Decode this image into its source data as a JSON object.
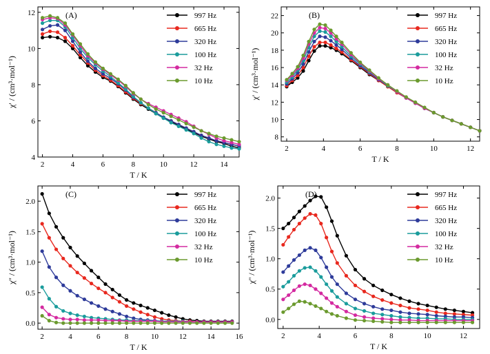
{
  "chart_data": [
    {
      "type": "line",
      "panel_label": "(A)",
      "xlabel": "T / K",
      "ylabel": "χ' / (cm³·mol⁻¹)",
      "xlim": [
        1.7,
        15
      ],
      "ylim": [
        4,
        12.3
      ],
      "xticks": [
        2,
        4,
        6,
        8,
        10,
        12,
        14
      ],
      "yticks": [
        4,
        6,
        8,
        10,
        12
      ],
      "legend": "top-right",
      "x": [
        2.0,
        2.5,
        3.0,
        3.5,
        4.0,
        4.5,
        5.0,
        5.5,
        6.0,
        6.5,
        7.0,
        7.5,
        8.0,
        8.5,
        9.0,
        9.5,
        10.0,
        10.5,
        11.0,
        11.5,
        12.0,
        12.5,
        13.0,
        13.5,
        14.0,
        14.5,
        15.0
      ],
      "series": [
        {
          "name": "997 Hz",
          "color": "#000000",
          "values": [
            10.6,
            10.65,
            10.6,
            10.4,
            10.0,
            9.5,
            9.05,
            8.7,
            8.4,
            8.2,
            7.9,
            7.55,
            7.2,
            6.9,
            6.65,
            6.4,
            6.15,
            5.95,
            5.75,
            5.55,
            5.35,
            5.15,
            5.0,
            4.85,
            4.75,
            4.6,
            4.5
          ]
        },
        {
          "name": "665 Hz",
          "color": "#e8281e",
          "values": [
            10.8,
            10.95,
            10.9,
            10.6,
            10.15,
            9.65,
            9.2,
            8.8,
            8.5,
            8.25,
            7.95,
            7.6,
            7.25,
            6.95,
            6.7,
            6.45,
            6.2,
            6.0,
            5.8,
            5.6,
            5.4,
            5.2,
            5.05,
            4.9,
            4.8,
            4.7,
            4.6
          ]
        },
        {
          "name": "320 Hz",
          "color": "#2e3b9a",
          "values": [
            11.05,
            11.25,
            11.3,
            11.0,
            10.4,
            9.8,
            9.3,
            8.9,
            8.6,
            8.35,
            8.05,
            7.7,
            7.3,
            7.0,
            6.7,
            6.45,
            6.2,
            6.0,
            5.8,
            5.6,
            5.4,
            5.2,
            5.05,
            4.9,
            4.8,
            4.7,
            4.6
          ]
        },
        {
          "name": "100 Hz",
          "color": "#1a9c9c",
          "values": [
            11.4,
            11.55,
            11.55,
            11.2,
            10.6,
            10.0,
            9.5,
            9.1,
            8.75,
            8.45,
            8.1,
            7.75,
            7.35,
            7.0,
            6.7,
            6.4,
            6.15,
            5.9,
            5.7,
            5.5,
            5.3,
            5.05,
            4.85,
            4.7,
            4.6,
            4.5,
            4.45
          ]
        },
        {
          "name": "32 Hz",
          "color": "#d42aa0",
          "values": [
            11.6,
            11.7,
            11.65,
            11.3,
            10.75,
            10.15,
            9.6,
            9.2,
            8.85,
            8.55,
            8.25,
            7.9,
            7.5,
            7.2,
            6.95,
            6.75,
            6.55,
            6.35,
            6.15,
            5.95,
            5.7,
            5.45,
            5.25,
            5.05,
            4.9,
            4.8,
            4.7
          ]
        },
        {
          "name": "10 Hz",
          "color": "#6b9a2e",
          "values": [
            11.7,
            11.8,
            11.7,
            11.4,
            10.8,
            10.25,
            9.7,
            9.25,
            8.9,
            8.6,
            8.3,
            7.95,
            7.55,
            7.2,
            6.9,
            6.65,
            6.45,
            6.25,
            6.05,
            5.85,
            5.65,
            5.45,
            5.3,
            5.15,
            5.05,
            4.95,
            4.85
          ]
        }
      ]
    },
    {
      "type": "line",
      "panel_label": "(B)",
      "xlabel": "T / K",
      "ylabel": "χ' / (cm³·mol⁻¹)",
      "xlim": [
        1.7,
        12.5
      ],
      "ylim": [
        7.5,
        23
      ],
      "xticks": [
        2,
        4,
        6,
        8,
        10,
        12
      ],
      "yticks": [
        8,
        10,
        12,
        14,
        16,
        18,
        20,
        22
      ],
      "legend": "top-right",
      "x": [
        2.0,
        2.3,
        2.6,
        2.9,
        3.2,
        3.5,
        3.8,
        4.1,
        4.4,
        4.7,
        5.0,
        5.5,
        6.0,
        6.5,
        7.0,
        7.5,
        8.0,
        8.5,
        9.0,
        9.5,
        10.0,
        10.5,
        11.0,
        11.5,
        12.0,
        12.5
      ],
      "series": [
        {
          "name": "997 Hz",
          "color": "#000000",
          "values": [
            13.8,
            14.3,
            14.8,
            15.6,
            16.8,
            17.9,
            18.5,
            18.5,
            18.3,
            18.0,
            17.6,
            16.8,
            16.0,
            15.2,
            14.5,
            13.8,
            13.1,
            12.5,
            11.9,
            11.3,
            10.8,
            10.3,
            9.9,
            9.5,
            9.1,
            8.7
          ]
        },
        {
          "name": "665 Hz",
          "color": "#e8281e",
          "values": [
            13.9,
            14.5,
            15.1,
            16.0,
            17.3,
            18.4,
            18.9,
            18.9,
            18.6,
            18.2,
            17.8,
            16.9,
            16.1,
            15.3,
            14.5,
            13.8,
            13.1,
            12.5,
            11.9,
            11.3,
            10.8,
            10.3,
            9.9,
            9.5,
            9.1,
            8.7
          ]
        },
        {
          "name": "320 Hz",
          "color": "#2e3b9a",
          "values": [
            14.1,
            14.7,
            15.4,
            16.4,
            17.8,
            19.0,
            19.6,
            19.5,
            19.1,
            18.6,
            18.1,
            17.1,
            16.2,
            15.4,
            14.6,
            13.9,
            13.2,
            12.5,
            11.9,
            11.3,
            10.8,
            10.3,
            9.9,
            9.5,
            9.1,
            8.7
          ]
        },
        {
          "name": "100 Hz",
          "color": "#1a9c9c",
          "values": [
            14.3,
            14.9,
            15.7,
            16.8,
            18.3,
            19.6,
            20.2,
            20.1,
            19.6,
            19.0,
            18.4,
            17.3,
            16.4,
            15.5,
            14.7,
            13.9,
            13.2,
            12.5,
            11.9,
            11.3,
            10.8,
            10.3,
            9.9,
            9.5,
            9.1,
            8.7
          ]
        },
        {
          "name": "32 Hz",
          "color": "#d42aa0",
          "values": [
            14.5,
            15.1,
            15.9,
            17.1,
            18.7,
            20.0,
            20.6,
            20.5,
            20.0,
            19.3,
            18.7,
            17.5,
            16.5,
            15.6,
            14.7,
            14.0,
            13.2,
            12.5,
            11.9,
            11.3,
            10.8,
            10.3,
            9.9,
            9.5,
            9.1,
            8.7
          ]
        },
        {
          "name": "10 Hz",
          "color": "#6b9a2e",
          "values": [
            14.6,
            15.3,
            16.1,
            17.4,
            19.0,
            20.4,
            21.0,
            20.9,
            20.3,
            19.6,
            18.9,
            17.7,
            16.6,
            15.7,
            14.8,
            14.0,
            13.3,
            12.6,
            12.0,
            11.4,
            10.8,
            10.3,
            9.9,
            9.5,
            9.1,
            8.7
          ]
        }
      ]
    },
    {
      "type": "line",
      "panel_label": "(C)",
      "xlabel": "T / K",
      "ylabel": "χ'' / (cm³·mol⁻¹)",
      "xlim": [
        1.7,
        16
      ],
      "ylim": [
        -0.1,
        2.25
      ],
      "xticks": [
        2,
        4,
        6,
        8,
        10,
        12,
        14,
        16
      ],
      "yticks": [
        0.0,
        0.5,
        1.0,
        1.5,
        2.0
      ],
      "legend": "top-right",
      "x": [
        2.0,
        2.5,
        3.0,
        3.5,
        4.0,
        4.5,
        5.0,
        5.5,
        6.0,
        6.5,
        7.0,
        7.5,
        8.0,
        8.5,
        9.0,
        9.5,
        10.0,
        10.5,
        11.0,
        11.5,
        12.0,
        12.5,
        13.0,
        13.5,
        14.0,
        14.5,
        15.0,
        15.5
      ],
      "series": [
        {
          "name": "997 Hz",
          "color": "#000000",
          "values": [
            2.12,
            1.8,
            1.58,
            1.4,
            1.24,
            1.1,
            0.98,
            0.86,
            0.75,
            0.64,
            0.55,
            0.46,
            0.38,
            0.33,
            0.29,
            0.25,
            0.21,
            0.17,
            0.13,
            0.1,
            0.07,
            0.05,
            0.04,
            0.03,
            0.03,
            0.03,
            0.03,
            0.03
          ]
        },
        {
          "name": "665 Hz",
          "color": "#e8281e",
          "values": [
            1.63,
            1.4,
            1.21,
            1.06,
            0.94,
            0.83,
            0.74,
            0.65,
            0.57,
            0.5,
            0.42,
            0.35,
            0.28,
            0.23,
            0.18,
            0.14,
            0.1,
            0.07,
            0.05,
            0.04,
            0.03,
            0.03,
            0.02,
            0.02,
            0.02,
            0.02,
            0.02,
            0.02
          ]
        },
        {
          "name": "320 Hz",
          "color": "#2e3b9a",
          "values": [
            1.18,
            0.92,
            0.75,
            0.62,
            0.53,
            0.45,
            0.39,
            0.33,
            0.28,
            0.23,
            0.19,
            0.15,
            0.11,
            0.08,
            0.06,
            0.05,
            0.04,
            0.03,
            0.03,
            0.02,
            0.02,
            0.02,
            0.02,
            0.02,
            0.02,
            0.02,
            0.02,
            0.02
          ]
        },
        {
          "name": "100 Hz",
          "color": "#1a9c9c",
          "values": [
            0.59,
            0.4,
            0.27,
            0.2,
            0.16,
            0.13,
            0.11,
            0.09,
            0.08,
            0.07,
            0.06,
            0.05,
            0.05,
            0.04,
            0.04,
            0.04,
            0.03,
            0.03,
            0.03,
            0.03,
            0.03,
            0.02,
            0.02,
            0.02,
            0.02,
            0.02,
            0.02,
            0.02
          ]
        },
        {
          "name": "32 Hz",
          "color": "#d42aa0",
          "values": [
            0.26,
            0.14,
            0.09,
            0.07,
            0.06,
            0.06,
            0.05,
            0.05,
            0.05,
            0.04,
            0.04,
            0.04,
            0.03,
            0.03,
            0.03,
            0.03,
            0.03,
            0.02,
            0.02,
            0.02,
            0.02,
            0.02,
            0.02,
            0.02,
            0.02,
            0.02,
            0.02,
            0.02
          ]
        },
        {
          "name": "10 Hz",
          "color": "#6b9a2e",
          "values": [
            0.12,
            0.04,
            0.01,
            0.0,
            0.0,
            0.0,
            0.0,
            0.0,
            0.0,
            0.0,
            0.0,
            0.0,
            0.0,
            0.0,
            0.0,
            0.0,
            0.0,
            0.0,
            0.0,
            0.0,
            0.0,
            0.0,
            0.0,
            0.0,
            0.0,
            0.0,
            0.0,
            0.0
          ]
        }
      ]
    },
    {
      "type": "line",
      "panel_label": "(D)",
      "xlabel": "T / K",
      "ylabel": "χ'' / (cm³·mol⁻¹)",
      "xlim": [
        1.7,
        12.9
      ],
      "ylim": [
        -0.15,
        2.2
      ],
      "xticks": [
        2,
        4,
        6,
        8,
        10,
        12
      ],
      "yticks": [
        0.0,
        0.5,
        1.0,
        1.5,
        2.0
      ],
      "legend": "top-right",
      "x": [
        2.0,
        2.3,
        2.6,
        2.9,
        3.2,
        3.5,
        3.8,
        4.1,
        4.4,
        4.7,
        5.0,
        5.5,
        6.0,
        6.5,
        7.0,
        7.5,
        8.0,
        8.5,
        9.0,
        9.5,
        10.0,
        10.5,
        11.0,
        11.5,
        12.0,
        12.5
      ],
      "series": [
        {
          "name": "997 Hz",
          "color": "#000000",
          "values": [
            1.5,
            1.58,
            1.68,
            1.78,
            1.87,
            1.96,
            2.03,
            2.02,
            1.85,
            1.62,
            1.38,
            1.05,
            0.82,
            0.67,
            0.56,
            0.48,
            0.41,
            0.35,
            0.3,
            0.26,
            0.23,
            0.2,
            0.17,
            0.15,
            0.13,
            0.11
          ]
        },
        {
          "name": "665 Hz",
          "color": "#e8281e",
          "values": [
            1.23,
            1.36,
            1.48,
            1.58,
            1.67,
            1.74,
            1.72,
            1.58,
            1.35,
            1.12,
            0.93,
            0.72,
            0.56,
            0.46,
            0.38,
            0.32,
            0.27,
            0.23,
            0.19,
            0.17,
            0.15,
            0.12,
            0.1,
            0.09,
            0.08,
            0.07
          ]
        },
        {
          "name": "320 Hz",
          "color": "#2e3b9a",
          "values": [
            0.78,
            0.88,
            0.98,
            1.06,
            1.14,
            1.18,
            1.14,
            1.02,
            0.86,
            0.7,
            0.58,
            0.43,
            0.33,
            0.26,
            0.21,
            0.17,
            0.15,
            0.12,
            0.1,
            0.09,
            0.08,
            0.06,
            0.05,
            0.04,
            0.04,
            0.03
          ]
        },
        {
          "name": "100 Hz",
          "color": "#1a9c9c",
          "values": [
            0.54,
            0.62,
            0.72,
            0.8,
            0.85,
            0.86,
            0.8,
            0.7,
            0.58,
            0.47,
            0.37,
            0.26,
            0.18,
            0.14,
            0.1,
            0.08,
            0.06,
            0.04,
            0.03,
            0.02,
            0.02,
            0.01,
            0.01,
            0.0,
            0.0,
            0.0
          ]
        },
        {
          "name": "32 Hz",
          "color": "#d42aa0",
          "values": [
            0.33,
            0.4,
            0.48,
            0.55,
            0.58,
            0.56,
            0.5,
            0.43,
            0.35,
            0.27,
            0.21,
            0.13,
            0.07,
            0.04,
            0.02,
            0.01,
            0.0,
            -0.01,
            -0.01,
            -0.02,
            -0.02,
            -0.02,
            -0.02,
            -0.02,
            -0.02,
            -0.02
          ]
        },
        {
          "name": "10 Hz",
          "color": "#6b9a2e",
          "values": [
            0.12,
            0.18,
            0.25,
            0.3,
            0.29,
            0.26,
            0.22,
            0.18,
            0.13,
            0.09,
            0.06,
            0.02,
            -0.01,
            -0.02,
            -0.03,
            -0.04,
            -0.05,
            -0.05,
            -0.05,
            -0.05,
            -0.05,
            -0.05,
            -0.05,
            -0.05,
            -0.05,
            -0.05
          ]
        }
      ]
    }
  ]
}
